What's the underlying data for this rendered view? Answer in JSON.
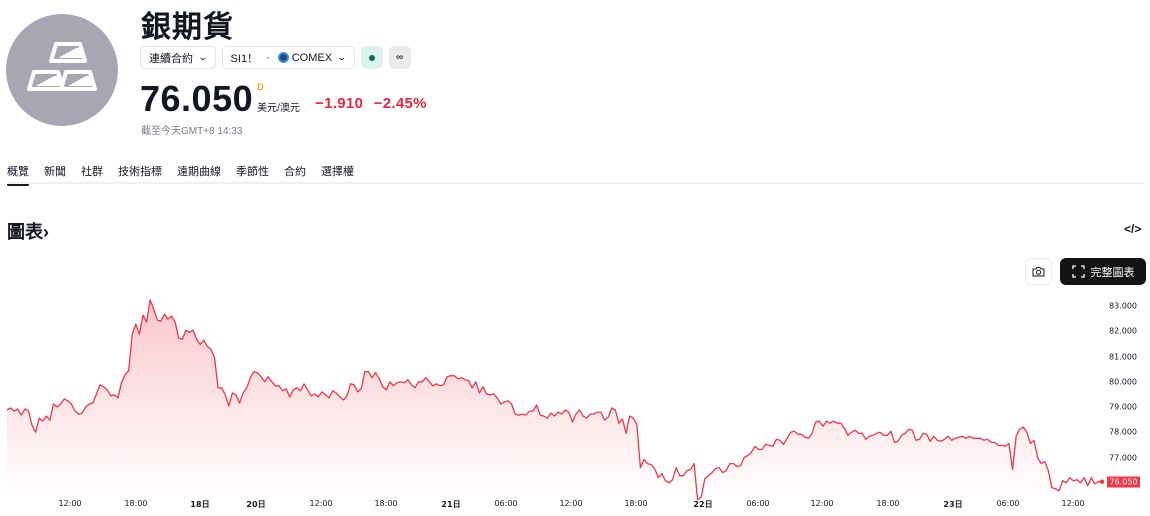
{
  "header": {
    "title": "銀期貨",
    "logo_icon": "silver-bars-icon",
    "chips": {
      "contract_type": "連續合約",
      "symbol": "SI1！",
      "separator": "·",
      "exchange": "COMEX",
      "status_icon": "market-open-dot-icon",
      "link_icon": "infinity-link-icon",
      "link_glyph": "∞"
    },
    "price": "76.050",
    "price_flag": "D",
    "unit": "美元/澳元",
    "change": "−1.910",
    "change_pct": "−2.45%",
    "as_of": "截至今天GMT+8 14:33",
    "colors": {
      "down": "#e5283b",
      "flag": "#f7a21b"
    }
  },
  "tabs": [
    {
      "label": "概覽",
      "active": true
    },
    {
      "label": "新聞"
    },
    {
      "label": "社群"
    },
    {
      "label": "技術指標"
    },
    {
      "label": "遠期曲線"
    },
    {
      "label": "季節性"
    },
    {
      "label": "合約"
    },
    {
      "label": "選擇權"
    }
  ],
  "chart_section": {
    "title": "圖表",
    "title_chevron": "›",
    "embed_glyph": "</>",
    "snapshot_icon": "camera-icon",
    "fullscreen_label": "完整圖表",
    "fullscreen_icon": "expand-corners-icon"
  },
  "chart_data": {
    "type": "area",
    "title": "",
    "line_color": "#f23645",
    "fill_gradient": [
      "#f9c9ce",
      "#ffffff"
    ],
    "y_ticks": [
      "83.000",
      "82.000",
      "81.000",
      "80.000",
      "79.000",
      "78.000",
      "77.000"
    ],
    "ylim": [
      75.8,
      83.4
    ],
    "last_price": "76.050",
    "x_ticks": [
      {
        "label": "12:00",
        "bold": false
      },
      {
        "label": "18:00",
        "bold": false
      },
      {
        "label": "18日",
        "bold": true
      },
      {
        "label": "20日",
        "bold": true
      },
      {
        "label": "12:00",
        "bold": false
      },
      {
        "label": "18:00",
        "bold": false
      },
      {
        "label": "21日",
        "bold": true
      },
      {
        "label": "06:00",
        "bold": false
      },
      {
        "label": "12:00",
        "bold": false
      },
      {
        "label": "18:00",
        "bold": false
      },
      {
        "label": "22日",
        "bold": true
      },
      {
        "label": "06:00",
        "bold": false
      },
      {
        "label": "12:00",
        "bold": false
      },
      {
        "label": "18:00",
        "bold": false
      },
      {
        "label": "23日",
        "bold": true
      },
      {
        "label": "06:00",
        "bold": false
      },
      {
        "label": "12:00",
        "bold": false
      }
    ],
    "series": [
      {
        "name": "SI1!",
        "values": [
          78.88,
          78.96,
          78.84,
          78.92,
          78.68,
          78.92,
          78.84,
          78.28,
          78.0,
          78.56,
          78.44,
          78.64,
          78.48,
          79.12,
          79.0,
          79.12,
          79.32,
          79.24,
          79.12,
          78.84,
          78.72,
          78.76,
          79.0,
          79.12,
          79.16,
          79.52,
          79.88,
          79.8,
          79.68,
          79.44,
          79.48,
          79.36,
          79.96,
          80.28,
          80.44,
          81.88,
          82.28,
          81.88,
          82.64,
          82.36,
          83.24,
          82.88,
          82.44,
          82.4,
          82.68,
          82.48,
          82.6,
          82.36,
          81.72,
          81.68,
          82.04,
          81.96,
          82.04,
          81.68,
          81.48,
          81.64,
          81.4,
          81.28,
          80.96,
          79.76,
          79.76,
          79.48,
          79.04,
          79.56,
          79.48,
          79.16,
          79.56,
          79.76,
          80.16,
          80.4,
          80.36,
          80.2,
          80.0,
          80.2,
          80.0,
          79.84,
          79.84,
          79.64,
          79.72,
          79.4,
          79.68,
          79.76,
          79.64,
          79.92,
          79.68,
          79.44,
          79.52,
          79.4,
          79.6,
          79.48,
          79.36,
          79.64,
          79.56,
          79.4,
          79.28,
          79.44,
          79.92,
          79.88,
          79.6,
          79.72,
          80.4,
          80.4,
          80.16,
          80.36,
          80.12,
          79.8,
          79.68,
          80.0,
          79.84,
          79.96,
          80.0,
          79.96,
          80.08,
          79.88,
          79.76,
          80.0,
          80.0,
          80.16,
          80.0,
          79.84,
          79.92,
          79.84,
          79.88,
          80.2,
          80.24,
          80.24,
          80.12,
          80.16,
          80.08,
          80.04,
          79.76,
          80.0,
          79.56,
          79.8,
          79.52,
          79.48,
          79.52,
          79.36,
          79.12,
          79.2,
          79.24,
          79.12,
          78.72,
          78.68,
          78.72,
          78.68,
          78.84,
          78.84,
          79.08,
          78.68,
          78.64,
          78.56,
          78.76,
          78.64,
          78.8,
          78.72,
          78.88,
          78.8,
          78.4,
          78.72,
          78.88,
          78.64,
          78.56,
          78.72,
          78.72,
          78.8,
          78.8,
          78.48,
          78.6,
          78.96,
          78.88,
          78.36,
          78.52,
          77.96,
          78.64,
          78.56,
          78.32,
          76.6,
          76.92,
          76.76,
          76.72,
          76.56,
          76.2,
          76.36,
          76.08,
          76.0,
          76.12,
          76.6,
          76.28,
          76.28,
          76.48,
          76.52,
          76.76,
          75.32,
          75.44,
          76.16,
          76.28,
          76.4,
          76.56,
          76.6,
          76.4,
          76.48,
          76.76,
          76.76,
          76.64,
          76.68,
          77.0,
          77.08,
          77.2,
          77.44,
          77.32,
          77.32,
          77.52,
          77.48,
          77.44,
          77.72,
          77.68,
          77.52,
          77.76,
          78.0,
          78.04,
          77.92,
          77.92,
          77.8,
          77.76,
          77.96,
          78.4,
          78.44,
          78.24,
          78.44,
          78.36,
          78.44,
          78.36,
          78.36,
          78.16,
          77.88,
          78.0,
          78.08,
          77.96,
          77.96,
          77.72,
          77.84,
          77.88,
          77.96,
          78.0,
          77.88,
          77.88,
          78.04,
          77.6,
          77.64,
          77.88,
          77.96,
          78.12,
          78.08,
          77.68,
          77.72,
          77.96,
          77.92,
          77.64,
          77.84,
          77.68,
          77.64,
          77.72,
          77.84,
          77.68,
          77.76,
          77.8,
          77.84,
          77.76,
          77.84,
          77.76,
          77.76,
          77.76,
          77.68,
          77.72,
          77.6,
          77.6,
          77.48,
          77.48,
          77.44,
          77.56,
          76.52,
          77.84,
          78.12,
          78.2,
          78.0,
          77.56,
          77.68,
          77.0,
          76.76,
          76.84,
          76.48,
          75.8,
          75.76,
          75.68,
          76.08,
          76.0,
          76.2,
          76.08,
          76.12,
          76.0,
          76.2,
          75.88,
          76.2,
          75.96,
          76.04,
          76.04
        ]
      }
    ],
    "grid": false,
    "legend": "none"
  }
}
